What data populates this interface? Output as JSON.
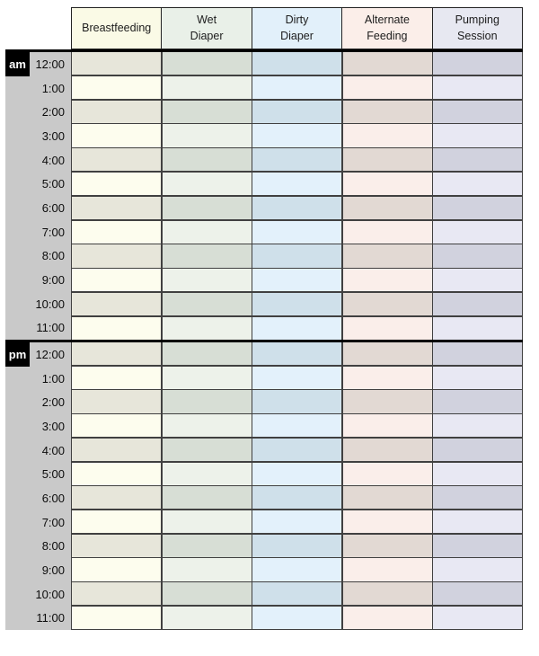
{
  "columns": [
    {
      "label": "Breastfeeding",
      "header_bg": "#fafae6",
      "light": "#fdfdee",
      "dark": "#e7e6da"
    },
    {
      "label": "Wet\nDiaper",
      "header_bg": "#e9f0e8",
      "light": "#edf2ea",
      "dark": "#d7ded5"
    },
    {
      "label": "Dirty\nDiaper",
      "header_bg": "#e2f0fa",
      "light": "#e3f1fb",
      "dark": "#cfe0ea"
    },
    {
      "label": "Alternate\nFeeding",
      "header_bg": "#fbeee9",
      "light": "#faeeea",
      "dark": "#e2d9d3"
    },
    {
      "label": "Pumping\nSession",
      "header_bg": "#e7e8f1",
      "light": "#e8e8f3",
      "dark": "#d1d2de"
    }
  ],
  "sections": [
    {
      "label": "am",
      "times": [
        "12:00",
        "1:00",
        "2:00",
        "3:00",
        "4:00",
        "5:00",
        "6:00",
        "7:00",
        "8:00",
        "9:00",
        "10:00",
        "11:00"
      ]
    },
    {
      "label": "pm",
      "times": [
        "12:00",
        "1:00",
        "2:00",
        "3:00",
        "4:00",
        "5:00",
        "6:00",
        "7:00",
        "8:00",
        "9:00",
        "10:00",
        "11:00"
      ]
    }
  ],
  "styles": {
    "gutter_bg": "#c9c9c9",
    "marker_bg": "#000000",
    "marker_fg": "#ffffff",
    "grid_line": "#404040",
    "header_line": "#222222",
    "divider": "#000000"
  }
}
